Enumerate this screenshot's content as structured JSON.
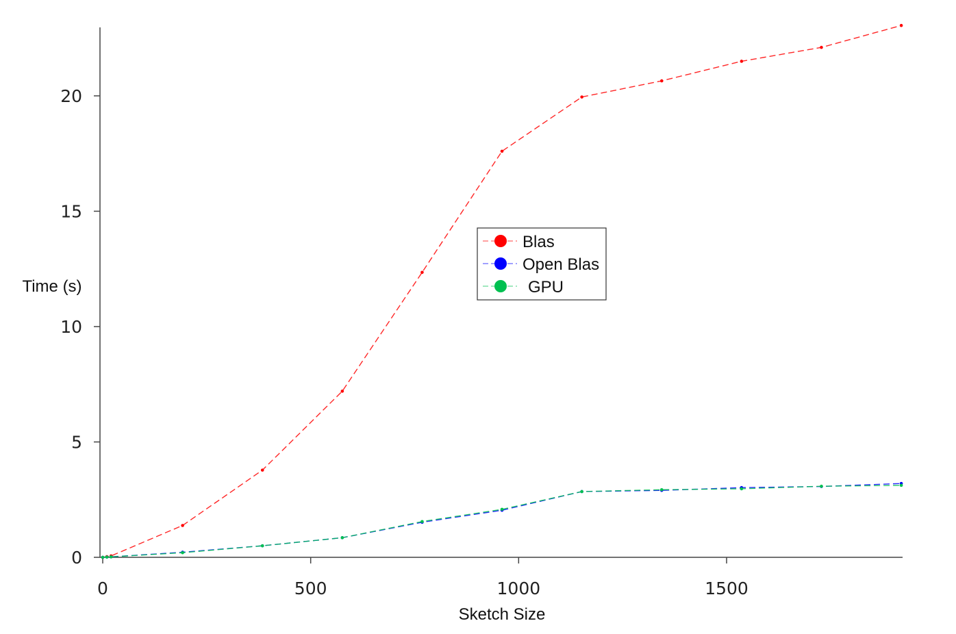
{
  "chart_data": {
    "type": "line",
    "title": "",
    "xlabel": "Sketch Size",
    "ylabel": "Time (s)",
    "xlim": [
      -10,
      1920
    ],
    "ylim": [
      0,
      22.9
    ],
    "xticks": [
      0,
      500,
      1000,
      1500
    ],
    "yticks": [
      0,
      5,
      10,
      15,
      20
    ],
    "grid": false,
    "legend_position": "center",
    "series": [
      {
        "name": "Blas",
        "color": "#ff0000",
        "x": [
          0,
          10,
          20,
          192,
          384,
          576,
          768,
          960,
          1152,
          1344,
          1536,
          1728,
          1920
        ],
        "y": [
          0.0,
          0.03,
          0.06,
          1.38,
          3.78,
          7.2,
          12.35,
          17.6,
          19.95,
          20.65,
          21.5,
          22.1,
          23.05
        ]
      },
      {
        "name": "Open Blas",
        "color": "#0000ff",
        "x": [
          0,
          10,
          20,
          192,
          384,
          576,
          768,
          960,
          1152,
          1344,
          1536,
          1728,
          1920
        ],
        "y": [
          0.0,
          0.01,
          0.02,
          0.22,
          0.5,
          0.85,
          1.52,
          2.04,
          2.85,
          2.9,
          3.02,
          3.07,
          3.2
        ]
      },
      {
        "name": "GPU",
        "color": "#00c050",
        "x": [
          0,
          10,
          20,
          192,
          384,
          576,
          768,
          960,
          1152,
          1344,
          1536,
          1728,
          1920
        ],
        "y": [
          0.0,
          0.01,
          0.02,
          0.2,
          0.5,
          0.85,
          1.55,
          2.08,
          2.85,
          2.93,
          2.97,
          3.08,
          3.12
        ]
      }
    ]
  }
}
